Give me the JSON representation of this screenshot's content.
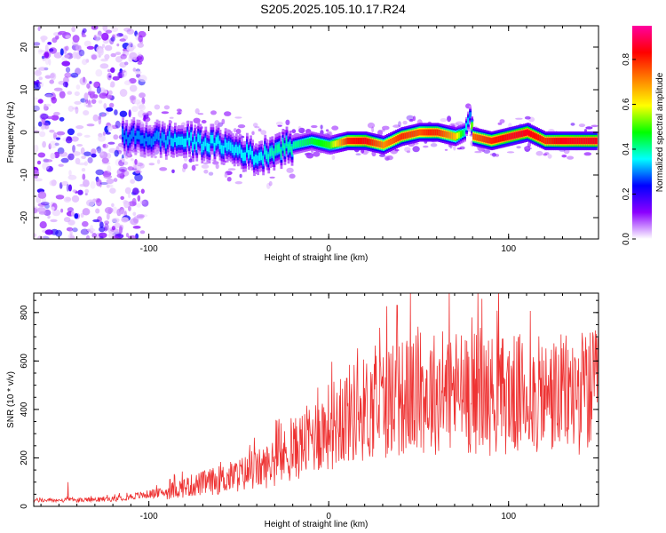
{
  "title": "S205.2025.105.10.17.R24",
  "chart_data": [
    {
      "type": "heatmap",
      "xlabel": "Height of straight line (km)",
      "ylabel": "Frequency (Hz)",
      "xlim": [
        -164,
        150
      ],
      "ylim": [
        -25,
        25
      ],
      "x_ticks": [
        "-100",
        "0",
        "100"
      ],
      "y_ticks": [
        "20",
        "10",
        "0",
        "-10",
        "-20"
      ],
      "colorbar": {
        "label": "Normalized spectral amplitude",
        "range": [
          0,
          0.95
        ],
        "ticks": [
          "0.0",
          "0.2",
          "0.4",
          "0.6",
          "0.8"
        ],
        "colors": [
          "#ffffff",
          "#8b00ff",
          "#0000ff",
          "#00ffff",
          "#00ff00",
          "#ffff00",
          "#ff8000",
          "#ff0000",
          "#ff00a0"
        ]
      },
      "ridge": {
        "x": [
          -115,
          -100,
          -80,
          -60,
          -45,
          -40,
          -30,
          -20,
          -10,
          0,
          10,
          20,
          30,
          40,
          50,
          55,
          60,
          70,
          75,
          78,
          80,
          90,
          100,
          110,
          120,
          130,
          140,
          148
        ],
        "y": [
          -1,
          -1.5,
          -2,
          -3,
          -5,
          -6,
          -4,
          -3,
          -2,
          -3,
          -2,
          -2,
          -3,
          -1,
          0,
          0,
          0,
          -1,
          0,
          4,
          -1,
          -2,
          -1,
          0,
          -2,
          -2,
          -2,
          -2
        ],
        "amplitude": [
          0.3,
          0.3,
          0.35,
          0.35,
          0.35,
          0.35,
          0.4,
          0.4,
          0.45,
          0.5,
          0.8,
          0.85,
          0.7,
          0.8,
          0.75,
          0.8,
          0.8,
          0.65,
          0.4,
          0.3,
          0.75,
          0.8,
          0.85,
          0.85,
          0.8,
          0.85,
          0.85,
          0.85
        ]
      },
      "noise_region_x": [
        -164,
        -110
      ]
    },
    {
      "type": "line",
      "xlabel": "Height of straight line (km)",
      "ylabel": "SNR (10 * v/v)",
      "xlim": [
        -164,
        150
      ],
      "ylim": [
        0,
        880
      ],
      "x_ticks": [
        "-100",
        "0",
        "100"
      ],
      "y_ticks": [
        "800",
        "600",
        "400",
        "200",
        "0"
      ],
      "color": "#ee3333",
      "envelope": {
        "x": [
          -164,
          -140,
          -120,
          -100,
          -90,
          -80,
          -60,
          -50,
          -40,
          -30,
          -20,
          -10,
          0,
          10,
          20,
          30,
          40,
          50,
          60,
          70,
          80,
          90,
          100,
          110,
          120,
          130,
          140,
          150
        ],
        "y": [
          25,
          25,
          30,
          50,
          60,
          80,
          110,
          130,
          150,
          180,
          230,
          280,
          330,
          380,
          400,
          430,
          450,
          460,
          470,
          480,
          470,
          460,
          460,
          460,
          450,
          460,
          470,
          470
        ]
      },
      "peaks": [
        {
          "x": -145,
          "y": 100
        },
        {
          "x": -6,
          "y": 490
        },
        {
          "x": 38,
          "y": 830
        },
        {
          "x": 83,
          "y": 880
        }
      ]
    }
  ]
}
